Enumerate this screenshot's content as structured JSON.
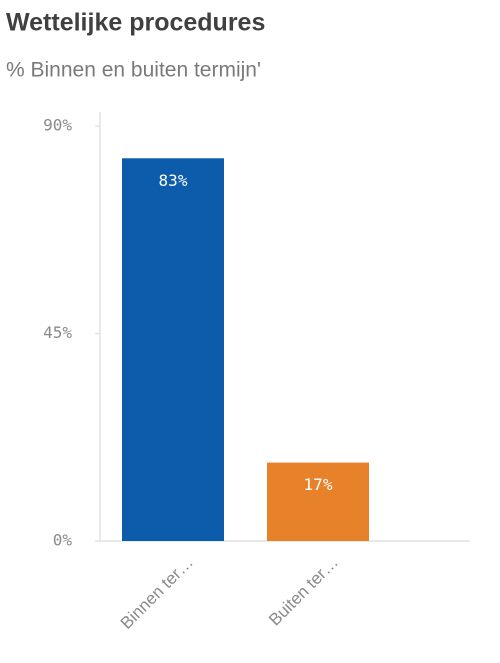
{
  "chart_data": {
    "type": "bar",
    "title": "Wettelijke procedures",
    "subtitle": "% Binnen en buiten termijn'",
    "categories": [
      "Binnen ter…",
      "Buiten ter…"
    ],
    "values": [
      83,
      17
    ],
    "value_labels": [
      "83%",
      "17%"
    ],
    "colors": [
      "#0d5cab",
      "#e8822a"
    ],
    "ylim": [
      0,
      90
    ],
    "yticks": [
      {
        "value": 0,
        "label": "0%"
      },
      {
        "value": 45,
        "label": "45%"
      },
      {
        "value": 90,
        "label": "90%"
      }
    ],
    "grid": false
  }
}
